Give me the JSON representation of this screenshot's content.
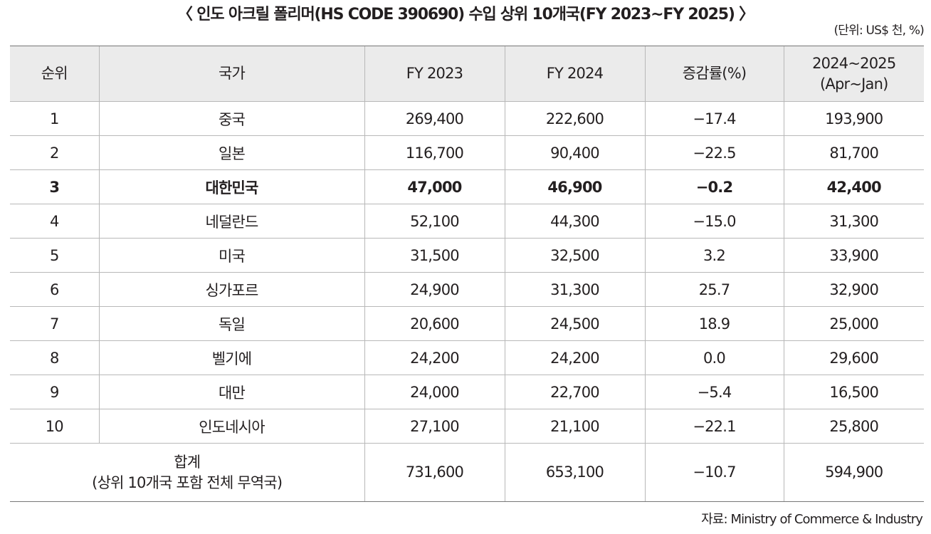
{
  "title": "〈 인도 아크릴 폴리머(HS CODE 390690) 수입 상위 10개국(FY 2023~FY 2025) 〉",
  "unit": "(단위: US$ 천, %)",
  "table": {
    "headers": {
      "rank": "순위",
      "country": "국가",
      "fy2023": "FY 2023",
      "fy2024": "FY 2024",
      "change": "증감률(%)",
      "period_line1": "2024~2025",
      "period_line2": "(Apr~Jan)"
    },
    "rows": [
      {
        "rank": "1",
        "country": "중국",
        "fy2023": "269,400",
        "fy2024": "222,600",
        "change": "−17.4",
        "period": "193,900"
      },
      {
        "rank": "2",
        "country": "일본",
        "fy2023": "116,700",
        "fy2024": "90,400",
        "change": "−22.5",
        "period": "81,700"
      },
      {
        "rank": "3",
        "country": "대한민국",
        "fy2023": "47,000",
        "fy2024": "46,900",
        "change": "−0.2",
        "period": "42,400"
      },
      {
        "rank": "4",
        "country": "네덜란드",
        "fy2023": "52,100",
        "fy2024": "44,300",
        "change": "−15.0",
        "period": "31,300"
      },
      {
        "rank": "5",
        "country": "미국",
        "fy2023": "31,500",
        "fy2024": "32,500",
        "change": "3.2",
        "period": "33,900"
      },
      {
        "rank": "6",
        "country": "싱가포르",
        "fy2023": "24,900",
        "fy2024": "31,300",
        "change": "25.7",
        "period": "32,900"
      },
      {
        "rank": "7",
        "country": "독일",
        "fy2023": "20,600",
        "fy2024": "24,500",
        "change": "18.9",
        "period": "25,000"
      },
      {
        "rank": "8",
        "country": "벨기에",
        "fy2023": "24,200",
        "fy2024": "24,200",
        "change": "0.0",
        "period": "29,600"
      },
      {
        "rank": "9",
        "country": "대만",
        "fy2023": "24,000",
        "fy2024": "22,700",
        "change": "−5.4",
        "period": "16,500"
      },
      {
        "rank": "10",
        "country": "인도네시아",
        "fy2023": "27,100",
        "fy2024": "21,100",
        "change": "−22.1",
        "period": "25,800"
      }
    ],
    "total": {
      "label_line1": "합계",
      "label_line2": "(상위 10개국 포함 전체 무역국)",
      "fy2023": "731,600",
      "fy2024": "653,100",
      "change": "−10.7",
      "period": "594,900"
    }
  },
  "source": "자료: Ministry of Commerce & Industry",
  "colors": {
    "header_bg": "#ebebeb",
    "grid": "#b8b8b8",
    "text": "#231f20"
  }
}
